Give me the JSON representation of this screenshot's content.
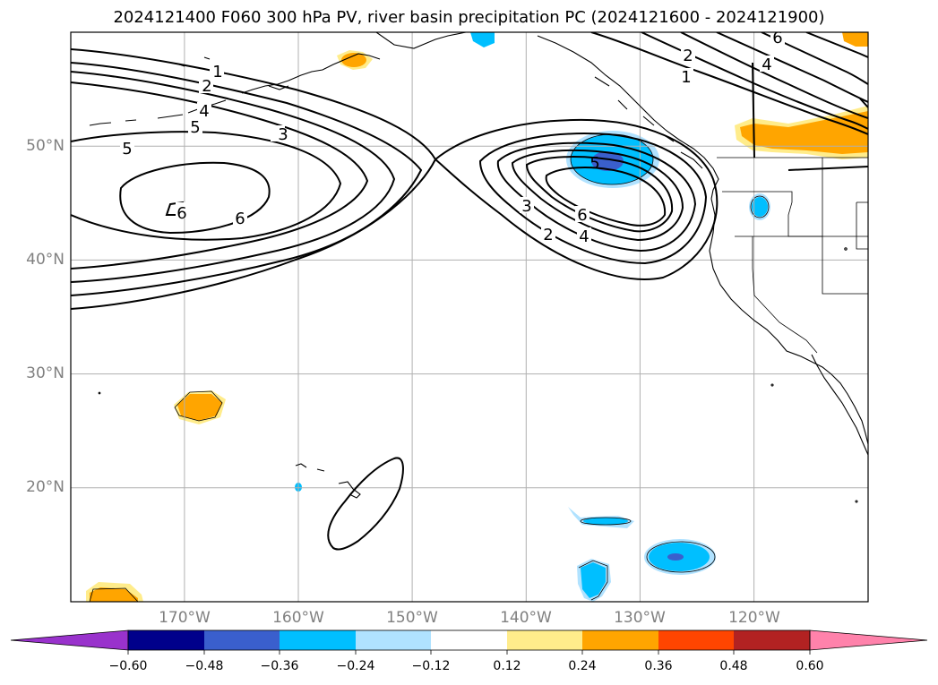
{
  "title": "2024121400 F060 300 hPa PV, river basin precipitation PC (2024121600 - 2024121900)",
  "lat_labels": [
    "50°N",
    "40°N",
    "30°N",
    "20°N"
  ],
  "lon_labels": [
    "170°W",
    "160°W",
    "150°W",
    "140°W",
    "130°W",
    "120°W"
  ],
  "contour_labels": [
    "1",
    "2",
    "3",
    "4",
    "5",
    "6",
    "6",
    "5",
    "2",
    "3",
    "4",
    "6",
    "1",
    "2",
    "4",
    "6",
    "5"
  ],
  "colorbar": {
    "ticks": [
      "−0.60",
      "−0.48",
      "−0.36",
      "−0.24",
      "−0.12",
      "0.12",
      "0.24",
      "0.36",
      "0.48",
      "0.60"
    ],
    "colors": [
      "#9932cc",
      "#00008b",
      "#3a5fcd",
      "#00bfff",
      "#b0e2ff",
      "#ffffff",
      "#ffec8b",
      "#ffa500",
      "#ff4500",
      "#b22222",
      "#ff82ab"
    ]
  },
  "map": {
    "lat_range": [
      10,
      60
    ],
    "lon_range": [
      180,
      250
    ],
    "contour_field": "300 hPa PV",
    "fill_field": "river basin precipitation PC"
  }
}
